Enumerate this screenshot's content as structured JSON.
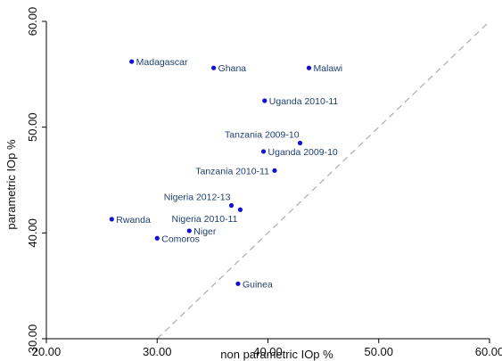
{
  "chart_data": {
    "type": "scatter",
    "title": "",
    "xlabel": "non parametric IOp %",
    "ylabel": "parametric IOp %",
    "xlim": [
      20,
      60
    ],
    "ylim": [
      30,
      60
    ],
    "x_ticks": [
      "20.00",
      "30.00",
      "40.00",
      "50.00",
      "60.00"
    ],
    "y_ticks": [
      "30.00",
      "40.00",
      "50.00",
      "60.00"
    ],
    "reference_line": "45-degree dashed line (y = x)",
    "grid": false,
    "legend": "none",
    "point_color": "#1010d8",
    "label_color": "#1f3f6f",
    "axis_color": "#000000",
    "reference_line_color": "#a6a6a6",
    "points": [
      {
        "label": "Madagascar",
        "x": 27.7,
        "y": 56.2
      },
      {
        "label": "Ghana",
        "x": 35.1,
        "y": 55.6
      },
      {
        "label": "Malawi",
        "x": 43.7,
        "y": 55.6
      },
      {
        "label": "Uganda 2010-11",
        "x": 39.7,
        "y": 52.5
      },
      {
        "label": "Tanzania 2009-10",
        "x": 42.9,
        "y": 48.5
      },
      {
        "label": "Uganda 2009-10",
        "x": 39.6,
        "y": 47.7
      },
      {
        "label": "Tanzania 2010-11",
        "x": 40.6,
        "y": 45.9
      },
      {
        "label": "Nigeria 2012-13",
        "x": 36.7,
        "y": 42.6
      },
      {
        "label": "Nigeria 2010-11",
        "x": 37.5,
        "y": 42.2
      },
      {
        "label": "Rwanda",
        "x": 25.9,
        "y": 41.3
      },
      {
        "label": "Niger",
        "x": 32.9,
        "y": 40.2
      },
      {
        "label": "Comoros",
        "x": 30.0,
        "y": 39.5
      },
      {
        "label": "Guinea",
        "x": 37.3,
        "y": 35.2
      }
    ]
  }
}
